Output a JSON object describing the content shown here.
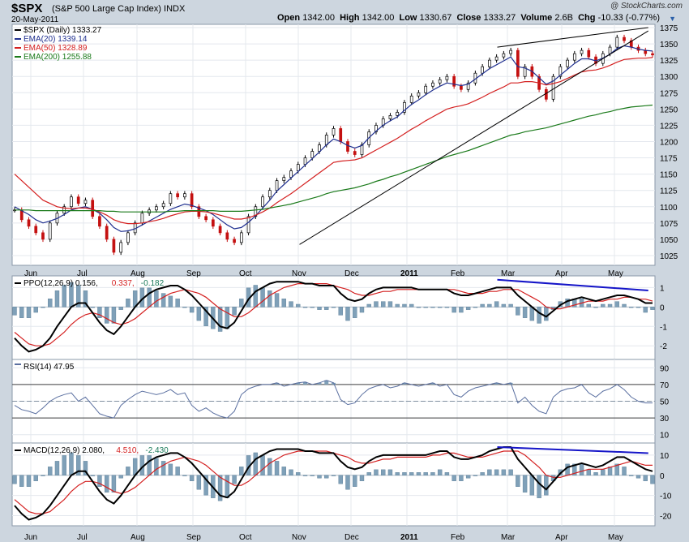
{
  "header": {
    "symbol": "$SPX",
    "name": "(S&P 500 Large Cap Index)",
    "exchange": "INDX",
    "date": "20-May-2011",
    "watermark": "@ StockCharts.com",
    "open_label": "Open",
    "open": "1342.00",
    "high_label": "High",
    "high": "1342.00",
    "low_label": "Low",
    "low": "1330.67",
    "close_label": "Close",
    "close": "1333.27",
    "volume_label": "Volume",
    "volume": "2.6B",
    "chg_label": "Chg",
    "chg": "-10.33 (-0.77%)"
  },
  "colors": {
    "price": "#000000",
    "ema20": "#1f2f8f",
    "ema50": "#d42020",
    "ema200": "#1a7a1a",
    "hist": "#7fa0b8",
    "trend_blue": "#1515c8",
    "bg": "#ffffff",
    "frame": "#cdd6df"
  },
  "chart_data": [
    {
      "type": "line",
      "title": "$SPX (Daily) 1333.27",
      "legend": [
        {
          "label": "$SPX (Daily) 1333.27",
          "color": "#000000"
        },
        {
          "label": "EMA(20) 1339.14",
          "color": "#1f2f8f"
        },
        {
          "label": "EMA(50) 1328.89",
          "color": "#d42020"
        },
        {
          "label": "EMA(200) 1255.88",
          "color": "#1a7a1a"
        }
      ],
      "legend_position": "top-left",
      "x_tick_labels": [
        "Jun",
        "Jul",
        "Aug",
        "Sep",
        "Oct",
        "Nov",
        "Dec",
        "2011",
        "Feb",
        "Mar",
        "Apr",
        "May"
      ],
      "y_tick_labels": [
        "1025",
        "1050",
        "1075",
        "1100",
        "1125",
        "1150",
        "1175",
        "1200",
        "1225",
        "1250",
        "1275",
        "1300",
        "1325",
        "1350",
        "1375"
      ],
      "ylim": [
        1010,
        1380
      ],
      "grid": true,
      "series": [
        {
          "key": "price",
          "values": [
            1095,
            1080,
            1070,
            1060,
            1050,
            1075,
            1090,
            1100,
            1115,
            1105,
            1110,
            1085,
            1070,
            1050,
            1030,
            1045,
            1060,
            1075,
            1090,
            1095,
            1100,
            1105,
            1120,
            1115,
            1120,
            1100,
            1085,
            1080,
            1070,
            1060,
            1050,
            1045,
            1060,
            1085,
            1100,
            1115,
            1125,
            1140,
            1145,
            1155,
            1165,
            1175,
            1185,
            1195,
            1210,
            1220,
            1200,
            1185,
            1180,
            1195,
            1215,
            1225,
            1235,
            1240,
            1245,
            1260,
            1270,
            1275,
            1285,
            1290,
            1295,
            1300,
            1285,
            1280,
            1290,
            1305,
            1315,
            1325,
            1330,
            1335,
            1340,
            1300,
            1315,
            1300,
            1280,
            1265,
            1300,
            1315,
            1325,
            1335,
            1340,
            1330,
            1320,
            1335,
            1345,
            1360,
            1355,
            1345,
            1340,
            1335,
            1333
          ]
        },
        {
          "key": "ema20",
          "values": [
            1100,
            1094,
            1088,
            1080,
            1075,
            1078,
            1082,
            1088,
            1095,
            1098,
            1100,
            1096,
            1090,
            1080,
            1068,
            1062,
            1063,
            1066,
            1072,
            1078,
            1084,
            1090,
            1096,
            1100,
            1104,
            1102,
            1098,
            1094,
            1088,
            1080,
            1072,
            1066,
            1068,
            1076,
            1086,
            1098,
            1110,
            1124,
            1134,
            1144,
            1154,
            1164,
            1174,
            1184,
            1195,
            1204,
            1200,
            1194,
            1190,
            1194,
            1206,
            1216,
            1225,
            1232,
            1238,
            1248,
            1257,
            1264,
            1272,
            1279,
            1285,
            1290,
            1288,
            1286,
            1288,
            1296,
            1304,
            1312,
            1318,
            1324,
            1330,
            1315,
            1313,
            1308,
            1298,
            1288,
            1293,
            1302,
            1311,
            1320,
            1327,
            1327,
            1324,
            1328,
            1334,
            1343,
            1347,
            1345,
            1342,
            1340,
            1339
          ]
        },
        {
          "key": "ema50",
          "values": [
            1150,
            1140,
            1130,
            1120,
            1110,
            1105,
            1100,
            1098,
            1097,
            1098,
            1098,
            1096,
            1092,
            1087,
            1080,
            1076,
            1074,
            1074,
            1075,
            1077,
            1079,
            1082,
            1086,
            1089,
            1092,
            1093,
            1093,
            1092,
            1090,
            1087,
            1084,
            1081,
            1081,
            1083,
            1087,
            1092,
            1098,
            1106,
            1113,
            1120,
            1128,
            1136,
            1144,
            1152,
            1160,
            1168,
            1170,
            1171,
            1172,
            1175,
            1181,
            1187,
            1193,
            1199,
            1205,
            1212,
            1219,
            1225,
            1232,
            1238,
            1244,
            1250,
            1253,
            1255,
            1258,
            1263,
            1268,
            1274,
            1279,
            1284,
            1290,
            1290,
            1292,
            1292,
            1290,
            1287,
            1289,
            1292,
            1297,
            1302,
            1307,
            1309,
            1310,
            1313,
            1317,
            1322,
            1326,
            1327,
            1328,
            1328,
            1329
          ]
        },
        {
          "key": "ema200",
          "values": [
            1095,
            1095,
            1095,
            1094,
            1094,
            1094,
            1094,
            1094,
            1094,
            1094,
            1094,
            1094,
            1094,
            1093,
            1093,
            1092,
            1092,
            1092,
            1092,
            1092,
            1092,
            1092,
            1093,
            1093,
            1094,
            1094,
            1094,
            1094,
            1094,
            1093,
            1093,
            1093,
            1093,
            1094,
            1095,
            1096,
            1098,
            1100,
            1102,
            1104,
            1107,
            1110,
            1113,
            1116,
            1120,
            1123,
            1125,
            1127,
            1129,
            1132,
            1135,
            1139,
            1142,
            1146,
            1149,
            1153,
            1157,
            1161,
            1165,
            1169,
            1173,
            1177,
            1180,
            1183,
            1186,
            1190,
            1194,
            1198,
            1202,
            1206,
            1210,
            1212,
            1215,
            1217,
            1219,
            1221,
            1224,
            1227,
            1230,
            1233,
            1236,
            1239,
            1241,
            1244,
            1246,
            1249,
            1251,
            1253,
            1254,
            1255,
            1256
          ]
        }
      ],
      "annotations": [
        {
          "type": "trendline",
          "label": "support",
          "x": [
            40.2,
            89.4
          ],
          "y": [
            1042,
            1370
          ]
        },
        {
          "type": "trendline",
          "label": "resistance",
          "x": [
            68.1,
            89.4
          ],
          "y": [
            1345,
            1375
          ]
        }
      ]
    },
    {
      "type": "line",
      "title": "PPO(12,26,9) 0.156, 0.337, -0.182",
      "legend": [
        {
          "label": "PPO(12,26,9) 0.156",
          "color": "#000000"
        },
        {
          "label": "0.337",
          "color": "#d42020"
        },
        {
          "label": "-0.182",
          "color": "#1a7a5a"
        }
      ],
      "y_tick_labels": [
        "1",
        "0",
        "-1",
        "-2"
      ],
      "ylim": [
        -2.7,
        1.6
      ],
      "series": [
        {
          "key": "ppo",
          "values": [
            -1.6,
            -2.0,
            -2.3,
            -2.2,
            -2.0,
            -1.6,
            -1.0,
            -0.5,
            0.0,
            0.2,
            0.2,
            -0.3,
            -0.8,
            -1.2,
            -1.4,
            -1.0,
            -0.5,
            0.0,
            0.4,
            0.7,
            0.9,
            1.0,
            1.1,
            1.1,
            0.9,
            0.6,
            0.2,
            -0.2,
            -0.6,
            -1.0,
            -1.1,
            -0.8,
            -0.2,
            0.4,
            0.8,
            1.0,
            1.2,
            1.3,
            1.3,
            1.3,
            1.3,
            1.2,
            1.2,
            1.1,
            1.1,
            1.1,
            0.7,
            0.4,
            0.3,
            0.4,
            0.7,
            0.9,
            1.0,
            1.0,
            1.0,
            1.0,
            1.0,
            0.9,
            0.9,
            0.9,
            0.9,
            0.9,
            0.7,
            0.6,
            0.6,
            0.7,
            0.8,
            0.9,
            1.0,
            1.0,
            1.0,
            0.6,
            0.3,
            0.0,
            -0.3,
            -0.5,
            -0.2,
            0.1,
            0.3,
            0.4,
            0.5,
            0.4,
            0.3,
            0.4,
            0.5,
            0.6,
            0.6,
            0.5,
            0.4,
            0.2,
            0.2
          ]
        },
        {
          "key": "signal",
          "values": [
            -1.3,
            -1.6,
            -1.9,
            -2.0,
            -2.0,
            -1.9,
            -1.6,
            -1.3,
            -0.9,
            -0.6,
            -0.4,
            -0.3,
            -0.4,
            -0.6,
            -0.8,
            -0.9,
            -0.8,
            -0.6,
            -0.3,
            0.0,
            0.3,
            0.5,
            0.7,
            0.8,
            0.9,
            0.8,
            0.7,
            0.5,
            0.2,
            -0.1,
            -0.3,
            -0.5,
            -0.5,
            -0.3,
            0.0,
            0.3,
            0.6,
            0.8,
            1.0,
            1.1,
            1.2,
            1.2,
            1.2,
            1.2,
            1.2,
            1.1,
            1.0,
            0.9,
            0.7,
            0.6,
            0.6,
            0.7,
            0.8,
            0.8,
            0.9,
            0.9,
            0.9,
            0.9,
            0.9,
            0.9,
            0.9,
            0.9,
            0.9,
            0.8,
            0.7,
            0.7,
            0.7,
            0.8,
            0.8,
            0.9,
            0.9,
            0.9,
            0.7,
            0.5,
            0.3,
            0.0,
            -0.1,
            -0.1,
            0.0,
            0.1,
            0.2,
            0.3,
            0.3,
            0.3,
            0.4,
            0.4,
            0.5,
            0.5,
            0.4,
            0.4,
            0.3
          ]
        }
      ],
      "annotations": [
        {
          "type": "trendline",
          "label": "divergence",
          "x": [
            68.1,
            89.4
          ],
          "y": [
            1.4,
            0.85
          ]
        }
      ]
    },
    {
      "type": "line",
      "title": "RSI(14) 47.95",
      "y_tick_labels": [
        "90",
        "70",
        "50",
        "30",
        "10"
      ],
      "ylim": [
        0,
        100
      ],
      "reference_lines": [
        70,
        50,
        30
      ],
      "series": [
        {
          "key": "rsi",
          "values": [
            45,
            40,
            38,
            35,
            42,
            50,
            55,
            58,
            60,
            50,
            55,
            45,
            35,
            32,
            30,
            45,
            52,
            58,
            62,
            60,
            58,
            60,
            64,
            58,
            60,
            45,
            38,
            42,
            36,
            32,
            30,
            38,
            58,
            65,
            68,
            70,
            70,
            72,
            68,
            70,
            72,
            73,
            70,
            72,
            75,
            72,
            52,
            46,
            48,
            58,
            65,
            68,
            70,
            66,
            68,
            72,
            70,
            68,
            70,
            72,
            68,
            70,
            58,
            55,
            62,
            66,
            68,
            70,
            72,
            70,
            72,
            48,
            55,
            45,
            38,
            35,
            55,
            62,
            65,
            66,
            70,
            60,
            55,
            62,
            65,
            70,
            64,
            55,
            50,
            48,
            48
          ]
        }
      ]
    },
    {
      "type": "line",
      "title": "MACD(12,26,9) 2.080, 4.510, -2.430",
      "legend": [
        {
          "label": "MACD(12,26,9) 2.080",
          "color": "#000000"
        },
        {
          "label": "4.510",
          "color": "#d42020"
        },
        {
          "label": "-2.430",
          "color": "#1a7a5a"
        }
      ],
      "y_tick_labels": [
        "10",
        "0",
        "-10",
        "-20"
      ],
      "ylim": [
        -25,
        16
      ],
      "series": [
        {
          "key": "macd",
          "values": [
            -15,
            -19,
            -22,
            -21,
            -19,
            -15,
            -10,
            -5,
            0,
            2,
            2,
            -3,
            -8,
            -12,
            -14,
            -10,
            -5,
            0,
            4,
            7,
            9,
            10,
            11,
            11,
            9,
            6,
            2,
            -2,
            -6,
            -10,
            -11,
            -8,
            -2,
            4,
            8,
            10,
            12,
            13,
            13,
            13,
            13,
            12,
            12,
            11,
            11,
            11,
            7,
            4,
            3,
            4,
            7,
            9,
            10,
            10,
            10,
            10,
            10,
            10,
            10,
            11,
            12,
            12,
            9,
            8,
            8,
            9,
            10,
            12,
            13,
            14,
            14,
            8,
            4,
            0,
            -4,
            -7,
            -3,
            1,
            4,
            5,
            6,
            5,
            4,
            5,
            7,
            9,
            9,
            7,
            5,
            3,
            2
          ]
        },
        {
          "key": "signal",
          "values": [
            -12,
            -15,
            -18,
            -19,
            -19,
            -18,
            -15,
            -12,
            -8,
            -5,
            -3,
            -3,
            -4,
            -6,
            -8,
            -9,
            -8,
            -6,
            -3,
            0,
            3,
            5,
            7,
            8,
            9,
            8,
            7,
            5,
            2,
            -1,
            -3,
            -5,
            -5,
            -3,
            0,
            3,
            6,
            8,
            10,
            11,
            12,
            12,
            12,
            12,
            12,
            11,
            10,
            9,
            7,
            6,
            6,
            7,
            8,
            8,
            9,
            9,
            9,
            9,
            9,
            10,
            10,
            11,
            11,
            10,
            9,
            9,
            9,
            10,
            11,
            12,
            12,
            12,
            10,
            7,
            4,
            0,
            -1,
            -1,
            0,
            1,
            2,
            3,
            3,
            3,
            4,
            5,
            6,
            7,
            6,
            5,
            5
          ]
        }
      ],
      "annotations": [
        {
          "type": "trendline",
          "label": "divergence",
          "x": [
            68.1,
            89.4
          ],
          "y": [
            14,
            11
          ]
        }
      ]
    }
  ]
}
